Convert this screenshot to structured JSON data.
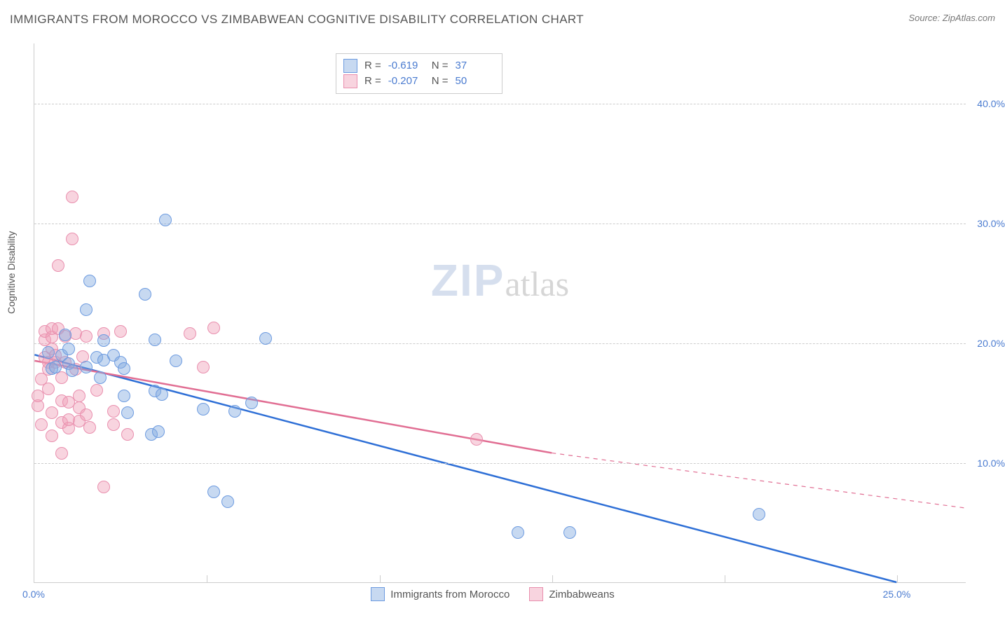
{
  "header": {
    "title": "IMMIGRANTS FROM MOROCCO VS ZIMBABWEAN COGNITIVE DISABILITY CORRELATION CHART",
    "source_label": "Source: ",
    "source_value": "ZipAtlas.com"
  },
  "yaxis": {
    "label": "Cognitive Disability",
    "min": 0.0,
    "max": 45.0,
    "ticks": [
      10.0,
      20.0,
      30.0,
      40.0
    ],
    "tick_labels": [
      "10.0%",
      "20.0%",
      "30.0%",
      "40.0%"
    ],
    "label_color": "#555555",
    "tick_color": "#4a7bd0"
  },
  "xaxis": {
    "min": 0.0,
    "max": 27.0,
    "ticks": [
      0.0,
      5.0,
      10.0,
      15.0,
      20.0,
      25.0
    ],
    "tick_labels": [
      "0.0%",
      "",
      "",
      "",
      "",
      "25.0%"
    ],
    "tick_color": "#4a7bd0"
  },
  "grid": {
    "color": "#cccccc",
    "dash": "4,4"
  },
  "watermark": {
    "part1": "ZIP",
    "part2": "atlas"
  },
  "series": [
    {
      "id": "morocco",
      "name": "Immigrants from Morocco",
      "color_fill": "rgba(130,170,225,0.45)",
      "color_stroke": "#6d9be0",
      "line_color": "#2e6fd6",
      "marker_radius": 9,
      "R": "-0.619",
      "N": "37",
      "trend": {
        "x1": 0.0,
        "y1": 19.0,
        "x2": 25.0,
        "y2": 0.0,
        "extend_dash_to_x": 27.0
      },
      "points": [
        [
          0.4,
          19.2
        ],
        [
          0.5,
          17.9
        ],
        [
          0.6,
          18.0
        ],
        [
          0.8,
          19.0
        ],
        [
          0.9,
          20.7
        ],
        [
          1.0,
          18.3
        ],
        [
          1.0,
          19.5
        ],
        [
          1.1,
          17.7
        ],
        [
          1.5,
          18.0
        ],
        [
          1.5,
          22.8
        ],
        [
          1.6,
          25.2
        ],
        [
          1.8,
          18.8
        ],
        [
          1.9,
          17.1
        ],
        [
          2.0,
          20.2
        ],
        [
          2.0,
          18.6
        ],
        [
          2.3,
          19.0
        ],
        [
          2.5,
          18.4
        ],
        [
          2.6,
          15.6
        ],
        [
          2.6,
          17.9
        ],
        [
          2.7,
          14.2
        ],
        [
          3.2,
          24.1
        ],
        [
          3.4,
          12.4
        ],
        [
          3.5,
          20.3
        ],
        [
          3.5,
          16.0
        ],
        [
          3.6,
          12.6
        ],
        [
          3.7,
          15.7
        ],
        [
          3.8,
          30.3
        ],
        [
          4.1,
          18.5
        ],
        [
          4.9,
          14.5
        ],
        [
          5.2,
          7.6
        ],
        [
          5.6,
          6.8
        ],
        [
          5.8,
          14.3
        ],
        [
          6.3,
          15.0
        ],
        [
          6.7,
          20.4
        ],
        [
          14.0,
          4.2
        ],
        [
          15.5,
          4.2
        ],
        [
          21.0,
          5.7
        ]
      ]
    },
    {
      "id": "zimbabwe",
      "name": "Zimbabweans",
      "color_fill": "rgba(240,160,185,0.45)",
      "color_stroke": "#e98fae",
      "line_color": "#e16e93",
      "marker_radius": 9,
      "R": "-0.207",
      "N": "50",
      "trend": {
        "x1": 0.0,
        "y1": 18.5,
        "x2": 15.0,
        "y2": 10.8,
        "extend_dash_to_x": 27.0,
        "extend_dash_to_y": 6.2
      },
      "points": [
        [
          0.1,
          14.8
        ],
        [
          0.1,
          15.6
        ],
        [
          0.2,
          13.2
        ],
        [
          0.2,
          17.0
        ],
        [
          0.3,
          18.8
        ],
        [
          0.3,
          20.3
        ],
        [
          0.3,
          21.0
        ],
        [
          0.4,
          18.4
        ],
        [
          0.4,
          16.2
        ],
        [
          0.4,
          17.8
        ],
        [
          0.5,
          19.5
        ],
        [
          0.5,
          20.5
        ],
        [
          0.5,
          21.2
        ],
        [
          0.5,
          14.2
        ],
        [
          0.5,
          12.3
        ],
        [
          0.6,
          18.4
        ],
        [
          0.6,
          19.0
        ],
        [
          0.7,
          21.2
        ],
        [
          0.7,
          26.5
        ],
        [
          0.8,
          17.1
        ],
        [
          0.8,
          15.2
        ],
        [
          0.8,
          13.4
        ],
        [
          0.8,
          10.8
        ],
        [
          0.9,
          20.6
        ],
        [
          0.9,
          18.4
        ],
        [
          1.0,
          15.1
        ],
        [
          1.0,
          12.9
        ],
        [
          1.0,
          13.6
        ],
        [
          1.1,
          28.7
        ],
        [
          1.1,
          32.2
        ],
        [
          1.2,
          17.8
        ],
        [
          1.2,
          20.8
        ],
        [
          1.3,
          14.6
        ],
        [
          1.3,
          13.5
        ],
        [
          1.3,
          15.6
        ],
        [
          1.4,
          18.9
        ],
        [
          1.5,
          20.6
        ],
        [
          1.5,
          14.0
        ],
        [
          1.6,
          13.0
        ],
        [
          1.8,
          16.1
        ],
        [
          2.0,
          20.8
        ],
        [
          2.0,
          8.0
        ],
        [
          2.3,
          13.2
        ],
        [
          2.3,
          14.3
        ],
        [
          2.5,
          21.0
        ],
        [
          2.7,
          12.4
        ],
        [
          4.5,
          20.8
        ],
        [
          4.9,
          18.0
        ],
        [
          5.2,
          21.3
        ],
        [
          12.8,
          12.0
        ]
      ]
    }
  ],
  "legend_top": {
    "r_label": "R  =",
    "n_label": "N  ="
  },
  "styling": {
    "background": "#ffffff",
    "axis_color": "#cccccc",
    "title_color": "#555555",
    "title_fontsize": 17,
    "axis_label_fontsize": 14,
    "legend_fontsize": 15,
    "value_color": "#4a7bd0"
  }
}
